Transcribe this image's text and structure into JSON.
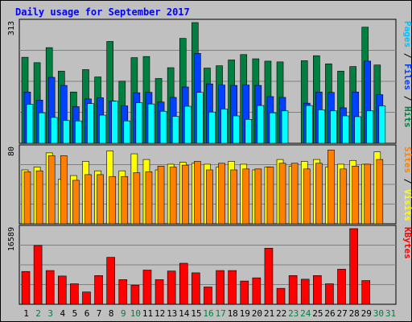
{
  "chart_data": {
    "type": "bar",
    "title": "Daily usage for September 2017",
    "categories": [
      "1",
      "2",
      "3",
      "4",
      "5",
      "6",
      "7",
      "8",
      "9",
      "10",
      "11",
      "12",
      "13",
      "14",
      "15",
      "16",
      "17",
      "18",
      "19",
      "20",
      "21",
      "22",
      "23",
      "24",
      "25",
      "26",
      "27",
      "28",
      "29",
      "30",
      "31"
    ],
    "weekend_days": [
      "2",
      "3",
      "9",
      "10",
      "16",
      "17",
      "23",
      "24",
      "30",
      "31"
    ],
    "panels": [
      {
        "name": "hits-files-pages",
        "ymax_label": "313",
        "ymax": 313,
        "axis_labels": [
          {
            "text": "Hits",
            "color": "#008040"
          },
          {
            "text": "Files",
            "color": "#0040ff"
          },
          {
            "text": "Pages",
            "color": "#00c0ff"
          }
        ],
        "series": [
          {
            "name": "Hits",
            "color": "#008040",
            "values": [
              223,
              209,
              248,
              187,
              133,
              191,
              172,
              264,
              161,
              222,
              225,
              168,
              196,
              272,
              313,
              195,
              201,
              216,
              230,
              219,
              213,
              211,
              0,
              214,
              227,
              206,
              187,
              199,
              301,
              203,
              0
            ]
          },
          {
            "name": "Files",
            "color": "#0040ff",
            "values": [
              133,
              112,
              171,
              150,
              95,
              115,
              118,
              110,
              97,
              131,
              132,
              107,
              119,
              146,
              233,
              154,
              151,
              150,
              151,
              150,
              121,
              119,
              0,
              104,
              133,
              132,
              92,
              133,
              213,
              126,
              0
            ]
          },
          {
            "name": "Pages",
            "color": "#00ffff",
            "values": [
              101,
              79,
              67,
              59,
              58,
              103,
              73,
              109,
              58,
              105,
              102,
              83,
              70,
              96,
              132,
              81,
              89,
              71,
              62,
              98,
              79,
              84,
              0,
              98,
              87,
              84,
              71,
              69,
              84,
              97,
              0
            ]
          }
        ]
      },
      {
        "name": "visits-sites",
        "ymax_label": "80",
        "ymax": 80,
        "axis_labels": [
          {
            "text": "Visits",
            "color": "#ffff00"
          },
          {
            "text": "Sites",
            "color": "#ff8000"
          }
        ],
        "series": [
          {
            "name": "Visits",
            "color": "#ffff00",
            "values": [
              57,
              60,
              75,
              47,
              51,
              66,
              56,
              77,
              56,
              74,
              68,
              57,
              63,
              65,
              64,
              63,
              60,
              66,
              63,
              57,
              60,
              68,
              61,
              66,
              68,
              60,
              63,
              67,
              63,
              76,
              0
            ]
          },
          {
            "name": "Sites",
            "color": "#ff8000",
            "values": [
              55,
              56,
              72,
              72,
              46,
              52,
              52,
              50,
              50,
              54,
              55,
              61,
              60,
              62,
              66,
              57,
              64,
              57,
              58,
              58,
              60,
              64,
              64,
              58,
              64,
              78,
              58,
              61,
              63,
              68,
              0
            ]
          }
        ]
      },
      {
        "name": "kbytes",
        "ymax_label": "16589",
        "ymax": 16589,
        "axis_labels": [
          {
            "text": "KBytes",
            "color": "#ff0000"
          }
        ],
        "series": [
          {
            "name": "KBytes",
            "color": "#ff0000",
            "values": [
              7200,
              12900,
              7400,
              6200,
              4500,
              2700,
              6300,
              10300,
              5400,
              4200,
              7500,
              5400,
              7300,
              9000,
              6900,
              3800,
              7400,
              7400,
              5100,
              5800,
              12300,
              3500,
              6300,
              5500,
              6300,
              4500,
              7700,
              16589,
              5200,
              0,
              0
            ]
          }
        ]
      }
    ]
  }
}
